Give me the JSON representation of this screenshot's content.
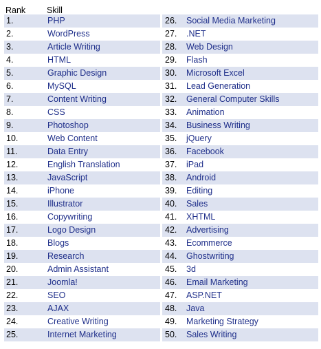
{
  "headers": {
    "rank": "Rank",
    "skill": "Skill"
  },
  "colors": {
    "row_shade": "#dde2f0",
    "skill_text": "#1f2f8a",
    "rank_text": "#000000"
  },
  "left_column": [
    {
      "rank": "1.",
      "skill": "PHP"
    },
    {
      "rank": "2.",
      "skill": "WordPress"
    },
    {
      "rank": "3.",
      "skill": "Article Writing"
    },
    {
      "rank": "4.",
      "skill": "HTML"
    },
    {
      "rank": "5.",
      "skill": "Graphic Design"
    },
    {
      "rank": "6.",
      "skill": "MySQL"
    },
    {
      "rank": "7.",
      "skill": "Content Writing"
    },
    {
      "rank": "8.",
      "skill": "CSS"
    },
    {
      "rank": "9.",
      "skill": "Photoshop"
    },
    {
      "rank": "10.",
      "skill": "Web Content"
    },
    {
      "rank": "11.",
      "skill": "Data Entry"
    },
    {
      "rank": "12.",
      "skill": "English Translation"
    },
    {
      "rank": "13.",
      "skill": "JavaScript"
    },
    {
      "rank": "14.",
      "skill": "iPhone"
    },
    {
      "rank": "15.",
      "skill": "Illustrator"
    },
    {
      "rank": "16.",
      "skill": "Copywriting"
    },
    {
      "rank": "17.",
      "skill": "Logo Design"
    },
    {
      "rank": "18.",
      "skill": "Blogs"
    },
    {
      "rank": "19.",
      "skill": "Research"
    },
    {
      "rank": "20.",
      "skill": "Admin Assistant"
    },
    {
      "rank": "21.",
      "skill": "Joomla!"
    },
    {
      "rank": "22.",
      "skill": "SEO"
    },
    {
      "rank": "23.",
      "skill": "AJAX"
    },
    {
      "rank": "24.",
      "skill": "Creative Writing"
    },
    {
      "rank": "25.",
      "skill": "Internet Marketing"
    }
  ],
  "right_column": [
    {
      "rank": "26.",
      "skill": "Social Media Marketing"
    },
    {
      "rank": "27.",
      "skill": ".NET"
    },
    {
      "rank": "28.",
      "skill": "Web Design"
    },
    {
      "rank": "29.",
      "skill": "Flash"
    },
    {
      "rank": "30.",
      "skill": "Microsoft Excel"
    },
    {
      "rank": "31.",
      "skill": "Lead Generation"
    },
    {
      "rank": "32.",
      "skill": "General Computer Skills"
    },
    {
      "rank": "33.",
      "skill": "Animation"
    },
    {
      "rank": "34.",
      "skill": "Business Writing"
    },
    {
      "rank": "35.",
      "skill": "jQuery"
    },
    {
      "rank": "36.",
      "skill": "Facebook"
    },
    {
      "rank": "37.",
      "skill": "iPad"
    },
    {
      "rank": "38.",
      "skill": "Android"
    },
    {
      "rank": "39.",
      "skill": "Editing"
    },
    {
      "rank": "40.",
      "skill": "Sales"
    },
    {
      "rank": "41.",
      "skill": "XHTML"
    },
    {
      "rank": "42.",
      "skill": "Advertising"
    },
    {
      "rank": "43.",
      "skill": "Ecommerce"
    },
    {
      "rank": "44.",
      "skill": "Ghostwriting"
    },
    {
      "rank": "45.",
      "skill": "3d"
    },
    {
      "rank": "46.",
      "skill": "Email Marketing"
    },
    {
      "rank": "47.",
      "skill": "ASP.NET"
    },
    {
      "rank": "48.",
      "skill": "Java"
    },
    {
      "rank": "49.",
      "skill": "Marketing Strategy"
    },
    {
      "rank": "50.",
      "skill": "Sales Writing"
    }
  ]
}
